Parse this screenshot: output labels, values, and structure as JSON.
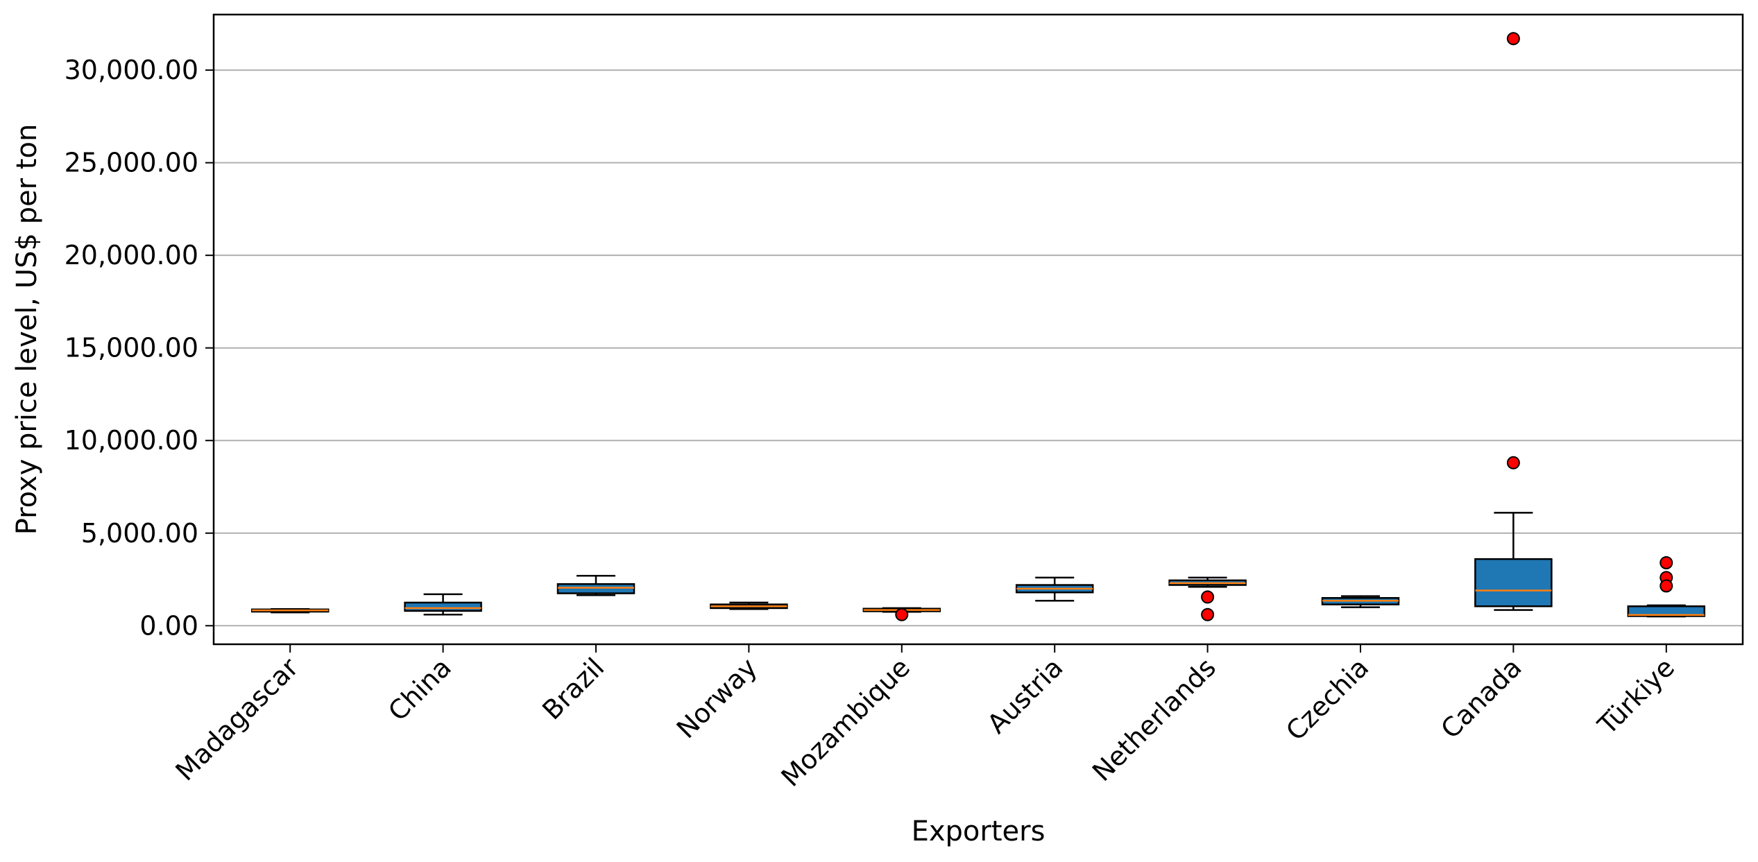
{
  "chart_data": {
    "type": "boxplot",
    "title": "",
    "xlabel": "Exporters",
    "ylabel": "Proxy price level, US$ per ton",
    "ylim": [
      -1000,
      33000
    ],
    "yticks": [
      0,
      5000,
      10000,
      15000,
      20000,
      25000,
      30000
    ],
    "ytick_labels": [
      "0.00",
      "5,000.00",
      "10,000.00",
      "15,000.00",
      "20,000.00",
      "25,000.00",
      "30,000.00"
    ],
    "grid": "horizontal",
    "colors": {
      "box": "#1f77b4",
      "median": "#ff7f0e",
      "outlier": "#ff0000",
      "grid": "#b0b0b0"
    },
    "categories": [
      "Madagascar",
      "China",
      "Brazil",
      "Norway",
      "Mozambique",
      "Austria",
      "Netherlands",
      "Czechia",
      "Canada",
      "Türkiye"
    ],
    "boxes": [
      {
        "whisker_low": 720,
        "q1": 760,
        "median": 830,
        "q3": 880,
        "whisker_high": 900,
        "outliers": []
      },
      {
        "whisker_low": 600,
        "q1": 800,
        "median": 950,
        "q3": 1250,
        "whisker_high": 1700,
        "outliers": []
      },
      {
        "whisker_low": 1650,
        "q1": 1750,
        "median": 2050,
        "q3": 2250,
        "whisker_high": 2700,
        "outliers": []
      },
      {
        "whisker_low": 900,
        "q1": 950,
        "median": 1050,
        "q3": 1150,
        "whisker_high": 1250,
        "outliers": []
      },
      {
        "whisker_low": 750,
        "q1": 780,
        "median": 850,
        "q3": 920,
        "whisker_high": 950,
        "outliers": [
          600
        ]
      },
      {
        "whisker_low": 1350,
        "q1": 1800,
        "median": 2000,
        "q3": 2200,
        "whisker_high": 2600,
        "outliers": []
      },
      {
        "whisker_low": 2100,
        "q1": 2200,
        "median": 2300,
        "q3": 2450,
        "whisker_high": 2600,
        "outliers": [
          1550,
          600
        ]
      },
      {
        "whisker_low": 1000,
        "q1": 1150,
        "median": 1350,
        "q3": 1500,
        "whisker_high": 1600,
        "outliers": []
      },
      {
        "whisker_low": 850,
        "q1": 1050,
        "median": 1900,
        "q3": 3600,
        "whisker_high": 6100,
        "outliers": [
          31700,
          8800
        ]
      },
      {
        "whisker_low": 500,
        "q1": 520,
        "median": 580,
        "q3": 1050,
        "whisker_high": 1100,
        "outliers": [
          3400,
          2600,
          2150
        ]
      }
    ]
  }
}
